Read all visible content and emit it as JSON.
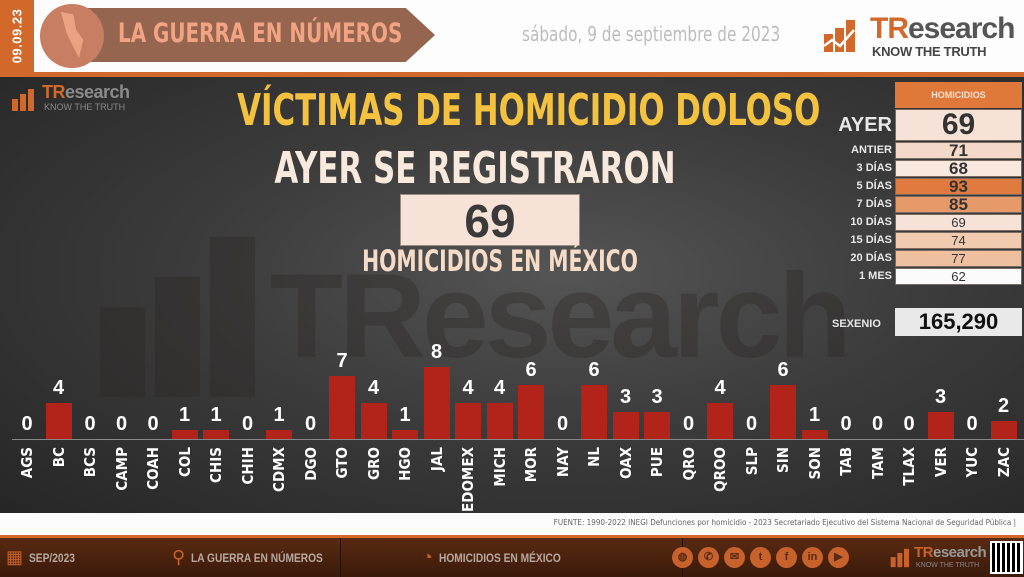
{
  "header": {
    "date_code": "09.09.23",
    "banner_title": "LA GUERRA EN NÚMEROS",
    "date_text": "sábado, 9 de septiembre de 2023",
    "logo": {
      "name_accent": "TR",
      "name_rest": "esearch",
      "tagline": "KNOW THE TRUTH"
    }
  },
  "main": {
    "small_logo": {
      "name_accent": "TR",
      "name_rest": "esearch",
      "tagline": "KNOW THE TRUTH"
    },
    "watermark": "TResearch",
    "title": "VÍCTIMAS DE HOMICIDIO DOLOSO",
    "subtitle": "AYER SE REGISTRARON",
    "highlight_value": "69",
    "caption": "HOMICIDIOS EN MÉXICO"
  },
  "table": {
    "header": "HOMICIDIOS",
    "rows": [
      {
        "label": "AYER",
        "value": "69",
        "bg": "#f6e2d6"
      },
      {
        "label": "ANTIER",
        "value": "71",
        "bg": "#f4d9c8"
      },
      {
        "label": "3 DÍAS",
        "value": "68",
        "bg": "#f9e8de"
      },
      {
        "label": "5 DÍAS",
        "value": "93",
        "bg": "#e07a3e"
      },
      {
        "label": "7 DÍAS",
        "value": "85",
        "bg": "#e69a6a"
      },
      {
        "label": "10 DÍAS",
        "value": "69",
        "bg": "#f6e2d6"
      },
      {
        "label": "15 DÍAS",
        "value": "74",
        "bg": "#f1cbb0"
      },
      {
        "label": "20 DÍAS",
        "value": "77",
        "bg": "#eec0a0"
      },
      {
        "label": "1 MES",
        "value": "62",
        "bg": "#fbfbfb"
      }
    ],
    "sexenio_label": "SEXENIO",
    "sexenio_value": "165,290"
  },
  "chart_data": {
    "type": "bar",
    "title": "VÍCTIMAS DE HOMICIDIO DOLOSO por estado",
    "categories": [
      "AGS",
      "BC",
      "BCS",
      "CAMP",
      "COAH",
      "COL",
      "CHIS",
      "CHIH",
      "CDMX",
      "DGO",
      "GTO",
      "GRO",
      "HGO",
      "JAL",
      "EDOMEX",
      "MICH",
      "MOR",
      "NAY",
      "NL",
      "OAX",
      "PUE",
      "QRO",
      "QROO",
      "SLP",
      "SIN",
      "SON",
      "TAB",
      "TAM",
      "TLAX",
      "VER",
      "YUC",
      "ZAC"
    ],
    "values": [
      0,
      4,
      0,
      0,
      0,
      1,
      1,
      0,
      1,
      0,
      7,
      4,
      1,
      8,
      4,
      4,
      6,
      0,
      6,
      3,
      3,
      0,
      4,
      0,
      6,
      1,
      0,
      0,
      0,
      3,
      0,
      2
    ],
    "xlabel": "",
    "ylabel": "",
    "grid": false,
    "bar_color": "#b2231a",
    "data_labels": true
  },
  "source": "FUENTE: 1990-2022 INEGI Defunciones por homicidio - 2023 Secretariado Ejecutivo del Sistema Nacional de Seguridad Pública |",
  "footer": {
    "items": [
      {
        "icon": "calendar-icon",
        "label": "SEP/2023"
      },
      {
        "icon": "map-pin-icon",
        "label": "LA GUERRA EN NÚMEROS"
      },
      {
        "icon": "chart-bubble-icon",
        "label": "HOMICIDIOS EN MÉXICO"
      }
    ],
    "social": [
      {
        "name": "globe-icon",
        "glyph": "◍"
      },
      {
        "name": "whatsapp-icon",
        "glyph": "✆"
      },
      {
        "name": "email-icon",
        "glyph": "✉"
      },
      {
        "name": "twitter-icon",
        "glyph": "t"
      },
      {
        "name": "facebook-icon",
        "glyph": "f"
      },
      {
        "name": "linkedin-icon",
        "glyph": "in"
      },
      {
        "name": "youtube-icon",
        "glyph": "▶"
      }
    ],
    "logo": {
      "name_accent": "TR",
      "name_rest": "esearch",
      "tagline": "KNOW THE TRUTH"
    }
  }
}
